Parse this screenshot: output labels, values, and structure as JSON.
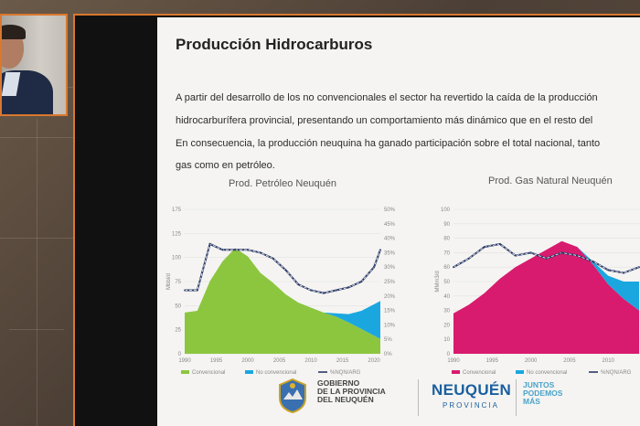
{
  "slide": {
    "title": "Producción Hidrocarburos",
    "paragraph": [
      "A partir del desarrollo de los no convencionales el sector ha revertido la caída de la producción",
      "hidrocarburífera provincial, presentando un comportamiento más dinámico que en el resto del",
      "En consecuencia, la producción neuquina ha ganado participación sobre el total nacional, tanto",
      "gas como en petróleo."
    ],
    "footer": {
      "gov_lines": [
        "GOBIERNO",
        "DE LA PROVINCIA",
        "DEL NEUQUÉN"
      ],
      "brand": "NEUQUÉN",
      "brand_sub": "PROVINCIA",
      "slogan_lines": [
        "JUNTOS",
        "PODEMOS",
        "MÁS"
      ]
    },
    "colors": {
      "conventional_oil": "#8cc63f",
      "conventional_gas": "#d81b6e",
      "non_conventional": "#1aa7e0",
      "share_line": "#2b3a67"
    }
  },
  "chart_data": [
    {
      "type": "area",
      "title": "Prod. Petróleo Neuquén",
      "ylabel": "Mbbl/d",
      "x": [
        1990,
        1992,
        1994,
        1996,
        1998,
        2000,
        2002,
        2004,
        2006,
        2008,
        2010,
        2012,
        2014,
        2016,
        2018,
        2020,
        2021
      ],
      "ylim": [
        0,
        175
      ],
      "y_ticks": [
        "0",
        "25",
        "50",
        "75",
        "100",
        "125",
        "175"
      ],
      "y2lim": [
        0,
        50
      ],
      "y2_ticks": [
        "0%",
        "5%",
        "10%",
        "15%",
        "20%",
        "25%",
        "30%",
        "35%",
        "40%",
        "45%",
        "50%"
      ],
      "x_ticks": [
        "1990",
        "1995",
        "2000",
        "2005",
        "2010",
        "2015",
        "2020"
      ],
      "series": [
        {
          "name": "Convencional",
          "values": [
            50,
            52,
            88,
            112,
            128,
            118,
            98,
            86,
            72,
            62,
            56,
            50,
            45,
            38,
            30,
            22,
            18
          ]
        },
        {
          "name": "No convencional",
          "values": [
            0,
            0,
            0,
            0,
            0,
            0,
            0,
            0,
            0,
            0,
            0,
            0,
            4,
            10,
            22,
            38,
            46
          ]
        },
        {
          "name": "%NQN/ARG",
          "axis": "secondary",
          "values": [
            22,
            22,
            38,
            36,
            36,
            36,
            35,
            33,
            29,
            24,
            22,
            21,
            22,
            23,
            25,
            30,
            36
          ]
        }
      ]
    },
    {
      "type": "area",
      "title": "Prod. Gas Natural Neuquén",
      "ylabel": "MMm3/d",
      "x": [
        1990,
        1992,
        1994,
        1996,
        1998,
        2000,
        2002,
        2004,
        2006,
        2008,
        2010,
        2012,
        2014
      ],
      "ylim": [
        0,
        100
      ],
      "y_ticks": [
        "0",
        "10",
        "20",
        "30",
        "40",
        "50",
        "60",
        "70",
        "80",
        "90",
        "100"
      ],
      "x_ticks": [
        "1990",
        "1995",
        "2000",
        "2005",
        "2010",
        "2015"
      ],
      "series": [
        {
          "name": "Convencional",
          "values": [
            28,
            34,
            42,
            52,
            60,
            66,
            72,
            78,
            74,
            62,
            48,
            38,
            30
          ]
        },
        {
          "name": "No convencional",
          "values": [
            0,
            0,
            0,
            0,
            0,
            0,
            0,
            0,
            0,
            2,
            6,
            12,
            20
          ]
        },
        {
          "name": "%NQN/ARG",
          "axis": "secondary",
          "values": [
            60,
            66,
            74,
            76,
            68,
            70,
            66,
            70,
            68,
            64,
            58,
            56,
            60
          ]
        }
      ]
    }
  ]
}
